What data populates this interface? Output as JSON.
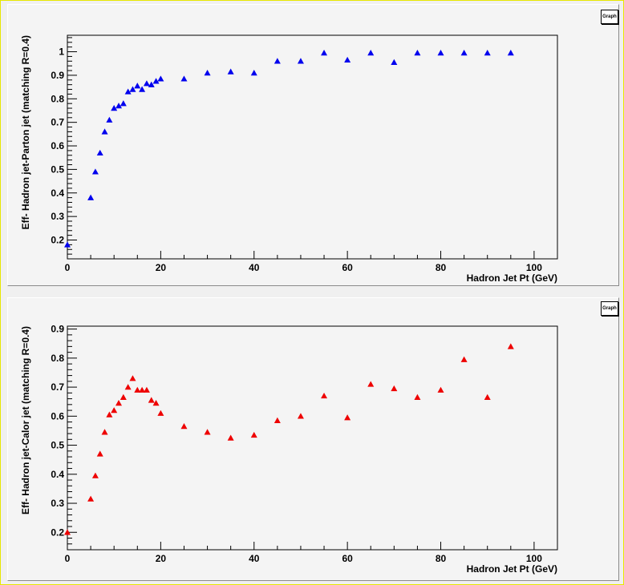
{
  "chart_data": [
    {
      "type": "scatter",
      "title_box": "Graph",
      "xlabel": "Hadron Jet Pt (GeV)",
      "ylabel": "Eff- Hadron jet-Parton jet (matching R=0.4)",
      "xlim": [
        0,
        105
      ],
      "ylim": [
        0.12,
        1.07
      ],
      "xticks": [
        "0",
        "20",
        "40",
        "60",
        "80",
        "100"
      ],
      "yticks": [
        "0.2",
        "0.3",
        "0.4",
        "0.5",
        "0.6",
        "0.7",
        "0.8",
        "0.9",
        "1"
      ],
      "color": "#0000ee",
      "marker": "triangle",
      "x": [
        0,
        5,
        6,
        7,
        8,
        9,
        10,
        11,
        12,
        13,
        14,
        15,
        16,
        17,
        18,
        19,
        20,
        25,
        30,
        35,
        40,
        45,
        50,
        55,
        60,
        65,
        70,
        75,
        80,
        85,
        90,
        95
      ],
      "y": [
        0.18,
        0.38,
        0.49,
        0.57,
        0.66,
        0.71,
        0.76,
        0.77,
        0.78,
        0.83,
        0.84,
        0.855,
        0.84,
        0.865,
        0.86,
        0.875,
        0.885,
        0.885,
        0.91,
        0.915,
        0.91,
        0.96,
        0.96,
        0.995,
        0.965,
        0.995,
        0.955,
        0.995,
        0.995,
        0.995,
        0.995,
        0.995
      ]
    },
    {
      "type": "scatter",
      "title_box": "Graph",
      "xlabel": "Hadron Jet Pt (GeV)",
      "ylabel": "Eff- Hadron jet-Calor jet (matching R=0.4)",
      "xlim": [
        0,
        105
      ],
      "ylim": [
        0.14,
        0.91
      ],
      "xticks": [
        "0",
        "20",
        "40",
        "60",
        "80",
        "100"
      ],
      "yticks": [
        "0.2",
        "0.3",
        "0.4",
        "0.5",
        "0.6",
        "0.7",
        "0.8",
        "0.9"
      ],
      "color": "#ee0000",
      "marker": "triangle",
      "x": [
        0,
        5,
        6,
        7,
        8,
        9,
        10,
        11,
        12,
        13,
        14,
        15,
        16,
        17,
        18,
        19,
        20,
        25,
        30,
        35,
        40,
        45,
        50,
        55,
        60,
        65,
        70,
        75,
        80,
        85,
        90,
        95
      ],
      "y": [
        0.2,
        0.315,
        0.395,
        0.47,
        0.545,
        0.605,
        0.62,
        0.645,
        0.665,
        0.7,
        0.73,
        0.69,
        0.69,
        0.69,
        0.655,
        0.645,
        0.61,
        0.565,
        0.545,
        0.525,
        0.535,
        0.585,
        0.6,
        0.67,
        0.595,
        0.71,
        0.695,
        0.665,
        0.69,
        0.795,
        0.665,
        0.84
      ]
    }
  ]
}
